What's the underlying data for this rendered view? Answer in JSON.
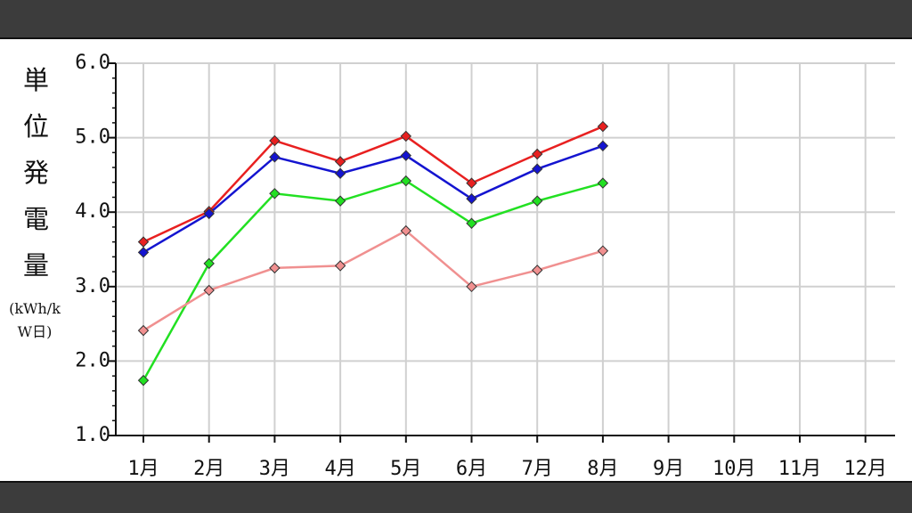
{
  "chart_data": {
    "type": "line",
    "y_label": "単位発電量",
    "y_unit": "(kWh/kW日)",
    "categories": [
      "1月",
      "2月",
      "3月",
      "4月",
      "5月",
      "6月",
      "7月",
      "8月",
      "9月",
      "10月",
      "11月",
      "12月"
    ],
    "series": [
      {
        "color": "#e82020",
        "values": [
          3.6,
          4.01,
          4.96,
          4.68,
          5.02,
          4.39,
          4.78,
          5.15,
          null,
          null,
          null,
          null
        ]
      },
      {
        "color": "#1414d0",
        "values": [
          3.46,
          3.98,
          4.74,
          4.52,
          4.76,
          4.18,
          4.58,
          4.89,
          null,
          null,
          null,
          null
        ]
      },
      {
        "color": "#22e022",
        "values": [
          1.74,
          3.31,
          4.25,
          4.15,
          4.42,
          3.85,
          4.15,
          4.39,
          null,
          null,
          null,
          null
        ]
      },
      {
        "color": "#f09090",
        "values": [
          2.41,
          2.95,
          3.25,
          3.28,
          3.75,
          3.0,
          3.22,
          3.48,
          null,
          null,
          null,
          null
        ]
      }
    ],
    "ylim": [
      1,
      6
    ],
    "yticks": [
      {
        "value": 1,
        "label": "1.0"
      },
      {
        "value": 2,
        "label": "2.0"
      },
      {
        "value": 3,
        "label": "3.0"
      },
      {
        "value": 4,
        "label": "4.0"
      },
      {
        "value": 5,
        "label": "5.0"
      },
      {
        "value": 6,
        "label": "6.0"
      }
    ],
    "grid": true
  }
}
